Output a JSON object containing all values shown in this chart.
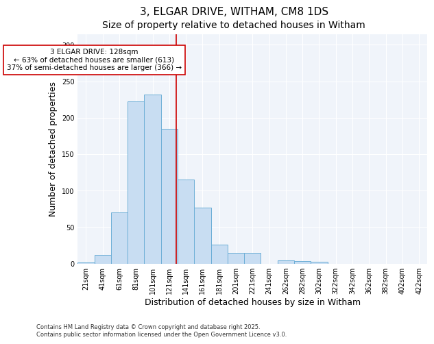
{
  "title_line1": "3, ELGAR DRIVE, WITHAM, CM8 1DS",
  "title_line2": "Size of property relative to detached houses in Witham",
  "xlabel": "Distribution of detached houses by size in Witham",
  "ylabel": "Number of detached properties",
  "categories": [
    "21sqm",
    "41sqm",
    "61sqm",
    "81sqm",
    "101sqm",
    "121sqm",
    "141sqm",
    "161sqm",
    "181sqm",
    "201sqm",
    "221sqm",
    "241sqm",
    "262sqm",
    "282sqm",
    "302sqm",
    "322sqm",
    "342sqm",
    "362sqm",
    "382sqm",
    "402sqm",
    "422sqm"
  ],
  "values": [
    1,
    12,
    70,
    222,
    232,
    185,
    115,
    77,
    26,
    15,
    15,
    0,
    4,
    3,
    2,
    0,
    0,
    0,
    0,
    0,
    0
  ],
  "bar_color": "#c8ddf2",
  "bar_edge_color": "#6baed6",
  "vline_color": "#cc0000",
  "vline_pos": 5.4,
  "annotation_text": "3 ELGAR DRIVE: 128sqm\n← 63% of detached houses are smaller (613)\n37% of semi-detached houses are larger (366) →",
  "annotation_box_facecolor": "#ffffff",
  "annotation_box_edgecolor": "#cc0000",
  "ylim": [
    0,
    315
  ],
  "fig_facecolor": "#ffffff",
  "axes_facecolor": "#f0f4fa",
  "grid_color": "#ffffff",
  "footnote": "Contains HM Land Registry data © Crown copyright and database right 2025.\nContains public sector information licensed under the Open Government Licence v3.0.",
  "title1_fontsize": 11,
  "title2_fontsize": 10,
  "axis_label_fontsize": 9,
  "tick_fontsize": 7,
  "annotation_fontsize": 7.5,
  "footnote_fontsize": 6
}
